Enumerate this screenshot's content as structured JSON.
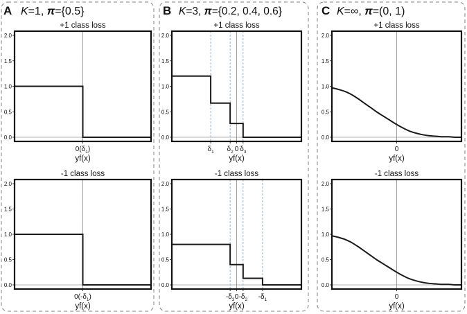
{
  "panels": [
    {
      "letter": "A",
      "title": {
        "k_var": "K",
        "k_val": "=1, ",
        "pi_var": "π",
        "pi_val": "={0.5}"
      }
    },
    {
      "letter": "B",
      "title": {
        "k_var": "K",
        "k_val": "=3, ",
        "pi_var": "π",
        "pi_val": "={0.2, 0.4, 0.6}"
      }
    },
    {
      "letter": "C",
      "title": {
        "k_var": "K",
        "k_val": "=∞, ",
        "pi_var": "π",
        "pi_val": "=(0, 1)"
      }
    }
  ],
  "chart_data": [
    {
      "type": "line",
      "panel": "A",
      "title": "+1 class loss",
      "xlabel": "yf(x)",
      "ylim": [
        0,
        2
      ],
      "xlim": [
        -1,
        1
      ],
      "yticks": [
        "0.0",
        "0.5",
        "1.0",
        "1.5",
        "2.0"
      ],
      "yticks_values": [
        0,
        0.5,
        1,
        1.5,
        2
      ],
      "xticks": [
        {
          "x": 0,
          "label": "0(δ1)"
        }
      ],
      "thresholds": [
        0
      ],
      "zero_line": 0,
      "series": [
        {
          "x": [
            -1,
            0,
            0,
            1
          ],
          "y": [
            1.0,
            1.0,
            0.0,
            0.0
          ]
        }
      ]
    },
    {
      "type": "line",
      "panel": "A",
      "title": "-1 class loss",
      "xlabel": "yf(x)",
      "ylim": [
        0,
        2
      ],
      "xlim": [
        -1,
        1
      ],
      "yticks": [
        "0.0",
        "0.5",
        "1.0",
        "1.5",
        "2.0"
      ],
      "yticks_values": [
        0,
        0.5,
        1,
        1.5,
        2
      ],
      "xticks": [
        {
          "x": 0,
          "label": "0(-δ1)"
        }
      ],
      "thresholds": [
        0
      ],
      "zero_line": 0,
      "series": [
        {
          "x": [
            -1,
            0,
            0,
            1
          ],
          "y": [
            1.0,
            1.0,
            0.0,
            0.0
          ]
        }
      ]
    },
    {
      "type": "line",
      "panel": "B",
      "title": "+1 class loss",
      "xlabel": "yf(x)",
      "ylim": [
        0,
        2
      ],
      "xlim": [
        -1,
        1
      ],
      "yticks": [
        "0.0",
        "0.5",
        "1.0",
        "1.5",
        "2.0"
      ],
      "yticks_values": [
        0,
        0.5,
        1,
        1.5,
        2
      ],
      "xticks": [
        {
          "x": -0.4,
          "label": "δ1"
        },
        {
          "x": -0.1,
          "label": "δ2"
        },
        {
          "x": 0,
          "label": "0"
        },
        {
          "x": 0.1,
          "label": "δ3"
        }
      ],
      "thresholds": [
        -0.4,
        -0.1,
        0.1
      ],
      "zero_line": 0,
      "series": [
        {
          "x": [
            -1,
            -0.4,
            -0.4,
            -0.1,
            -0.1,
            0.1,
            0.1,
            1
          ],
          "y": [
            1.2,
            1.2,
            0.67,
            0.67,
            0.27,
            0.27,
            0.0,
            0.0
          ]
        }
      ]
    },
    {
      "type": "line",
      "panel": "B",
      "title": "-1 class loss",
      "xlabel": "yf(x)",
      "ylim": [
        0,
        2
      ],
      "xlim": [
        -1,
        1
      ],
      "yticks": [
        "0.0",
        "0.5",
        "1.0",
        "1.5",
        "2.0"
      ],
      "yticks_values": [
        0,
        0.5,
        1,
        1.5,
        2
      ],
      "xticks": [
        {
          "x": -0.1,
          "label": "-δ3"
        },
        {
          "x": 0,
          "label": "0"
        },
        {
          "x": 0.1,
          "label": "-δ2"
        },
        {
          "x": 0.4,
          "label": "-δ1"
        }
      ],
      "thresholds": [
        -0.1,
        0.1,
        0.4
      ],
      "zero_line": 0,
      "series": [
        {
          "x": [
            -1,
            -0.1,
            -0.1,
            0.1,
            0.1,
            0.4,
            0.4,
            1
          ],
          "y": [
            0.8,
            0.8,
            0.4,
            0.4,
            0.13,
            0.13,
            0.0,
            0.0
          ]
        }
      ]
    },
    {
      "type": "line",
      "panel": "C",
      "title": "+1 class loss",
      "xlabel": "yf(x)",
      "ylim": [
        0,
        2
      ],
      "xlim": [
        -1,
        1
      ],
      "yticks": [
        "0.0",
        "0.5",
        "1.0",
        "1.5",
        "2.0"
      ],
      "yticks_values": [
        0,
        0.5,
        1,
        1.5,
        2
      ],
      "xticks": [
        {
          "x": 0,
          "label": "0"
        }
      ],
      "thresholds": [],
      "zero_line": 0,
      "series": [
        {
          "x": [
            -1,
            -0.9,
            -0.8,
            -0.7,
            -0.6,
            -0.5,
            -0.4,
            -0.3,
            -0.2,
            -0.1,
            0,
            0.1,
            0.2,
            0.3,
            0.4,
            0.5,
            0.6,
            0.7,
            0.8,
            0.9,
            1
          ],
          "y": [
            0.97,
            0.94,
            0.9,
            0.84,
            0.76,
            0.67,
            0.58,
            0.49,
            0.41,
            0.33,
            0.25,
            0.18,
            0.12,
            0.08,
            0.05,
            0.03,
            0.02,
            0.01,
            0.01,
            0.0,
            0.0
          ]
        }
      ]
    },
    {
      "type": "line",
      "panel": "C",
      "title": "-1 class loss",
      "xlabel": "yf(x)",
      "ylim": [
        0,
        2
      ],
      "xlim": [
        -1,
        1
      ],
      "yticks": [
        "0.0",
        "0.5",
        "1.0",
        "1.5",
        "2.0"
      ],
      "yticks_values": [
        0,
        0.5,
        1,
        1.5,
        2
      ],
      "xticks": [
        {
          "x": 0,
          "label": "0"
        }
      ],
      "thresholds": [],
      "zero_line": 0,
      "series": [
        {
          "x": [
            -1,
            -0.9,
            -0.8,
            -0.7,
            -0.6,
            -0.5,
            -0.4,
            -0.3,
            -0.2,
            -0.1,
            0,
            0.1,
            0.2,
            0.3,
            0.4,
            0.5,
            0.6,
            0.7,
            0.8,
            0.9,
            1
          ],
          "y": [
            0.97,
            0.94,
            0.9,
            0.84,
            0.76,
            0.67,
            0.58,
            0.49,
            0.41,
            0.33,
            0.25,
            0.18,
            0.12,
            0.08,
            0.05,
            0.03,
            0.02,
            0.01,
            0.01,
            0.0,
            0.0
          ]
        }
      ]
    }
  ]
}
